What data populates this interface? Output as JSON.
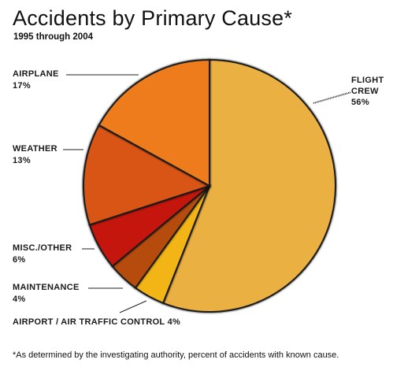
{
  "title": "Accidents by Primary Cause*",
  "subtitle": "1995 through 2004",
  "footnote": "*As determined by the investigating authority, percent of accidents with known cause.",
  "chart_data": {
    "type": "pie",
    "title": "Accidents by Primary Cause*",
    "subtitle": "1995 through 2004",
    "unit": "%",
    "slices": [
      {
        "name": "FLIGHT CREW",
        "value": 56,
        "label": "56%",
        "color": "#ebb042"
      },
      {
        "name": "AIRPORT / AIR TRAFFIC CONTROL",
        "value": 4,
        "label": "4%",
        "color": "#f3b515"
      },
      {
        "name": "MAINTENANCE",
        "value": 4,
        "label": "4%",
        "color": "#b54b0c"
      },
      {
        "name": "MISC./OTHER",
        "value": 6,
        "label": "6%",
        "color": "#c41910"
      },
      {
        "name": "WEATHER",
        "value": 13,
        "label": "13%",
        "color": "#d95414"
      },
      {
        "name": "AIRPLANE",
        "value": 17,
        "label": "17%",
        "color": "#ee7c1c"
      }
    ]
  }
}
